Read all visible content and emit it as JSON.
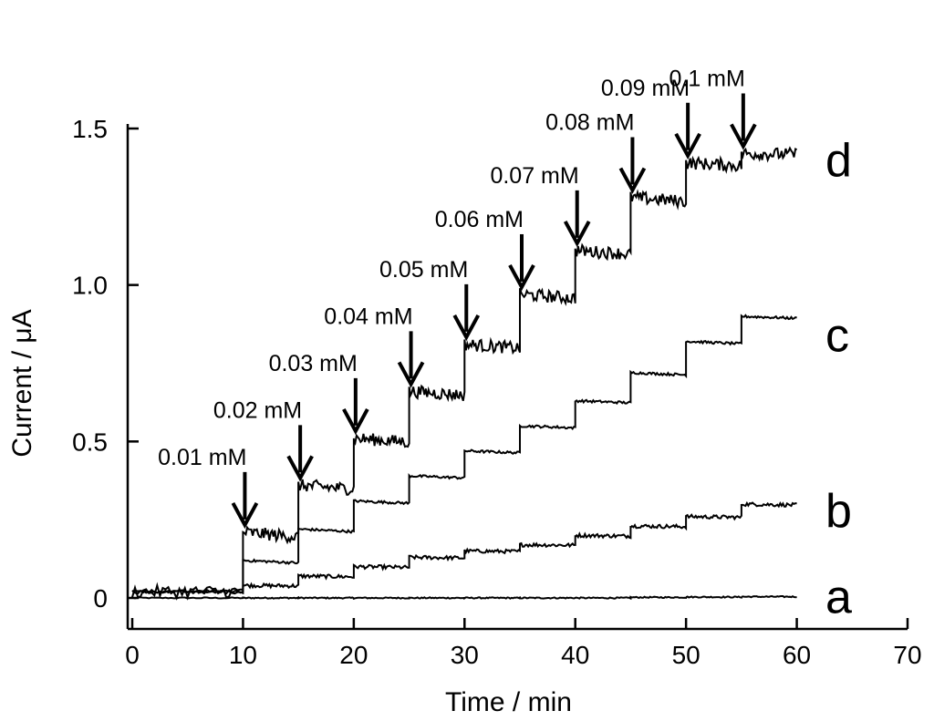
{
  "chart_data": {
    "type": "line",
    "title": "",
    "xlabel": "Time / min",
    "ylabel": "Current / μA",
    "xlim": [
      0,
      70
    ],
    "ylim": [
      -0.1,
      1.5
    ],
    "xticks": [
      0,
      10,
      20,
      30,
      40,
      50,
      60,
      70
    ],
    "xtick_labels": [
      "0",
      "10",
      "20",
      "30",
      "40",
      "50",
      "60",
      "70"
    ],
    "yticks": [
      0,
      0.5,
      1.0,
      1.5
    ],
    "ytick_labels": [
      "0",
      "0.5",
      "1.0",
      "1.5"
    ],
    "grid": false,
    "series": [
      {
        "name": "a",
        "x": [
          0,
          10,
          15,
          20,
          25,
          30,
          35,
          40,
          45,
          50,
          55,
          60
        ],
        "y": [
          0.0,
          0.0,
          0.0,
          0.0,
          0.0,
          0.0,
          0.0,
          0.0,
          0.002,
          0.003,
          0.004,
          0.005
        ],
        "noise": 0.002
      },
      {
        "name": "b",
        "x": [
          0,
          10,
          15,
          20,
          25,
          30,
          35,
          40,
          45,
          50,
          55,
          60
        ],
        "y": [
          0.02,
          0.04,
          0.07,
          0.1,
          0.13,
          0.15,
          0.17,
          0.2,
          0.23,
          0.26,
          0.3,
          0.28
        ],
        "noise": 0.006
      },
      {
        "name": "c",
        "x": [
          0,
          10,
          15,
          20,
          25,
          30,
          35,
          40,
          45,
          50,
          55,
          60
        ],
        "y": [
          0.02,
          0.12,
          0.22,
          0.31,
          0.39,
          0.47,
          0.55,
          0.63,
          0.72,
          0.82,
          0.9,
          0.84
        ],
        "noise": 0.004
      },
      {
        "name": "d",
        "x": [
          0,
          10,
          15,
          20,
          25,
          30,
          35,
          40,
          45,
          50,
          55,
          60
        ],
        "y": [
          0.02,
          0.21,
          0.36,
          0.51,
          0.66,
          0.81,
          0.97,
          1.11,
          1.28,
          1.39,
          1.42,
          1.4
        ],
        "noise": 0.02
      }
    ],
    "annotations": [
      {
        "label": "0.01 mM",
        "x": 10
      },
      {
        "label": "0.02 mM",
        "x": 15
      },
      {
        "label": "0.03 mM",
        "x": 20
      },
      {
        "label": "0.04 mM",
        "x": 25
      },
      {
        "label": "0.05 mM",
        "x": 30
      },
      {
        "label": "0.06 mM",
        "x": 35
      },
      {
        "label": "0.07 mM",
        "x": 40
      },
      {
        "label": "0.08 mM",
        "x": 45
      },
      {
        "label": "0.09 mM",
        "x": 50
      },
      {
        "label": "0.1 mM",
        "x": 55
      }
    ]
  }
}
